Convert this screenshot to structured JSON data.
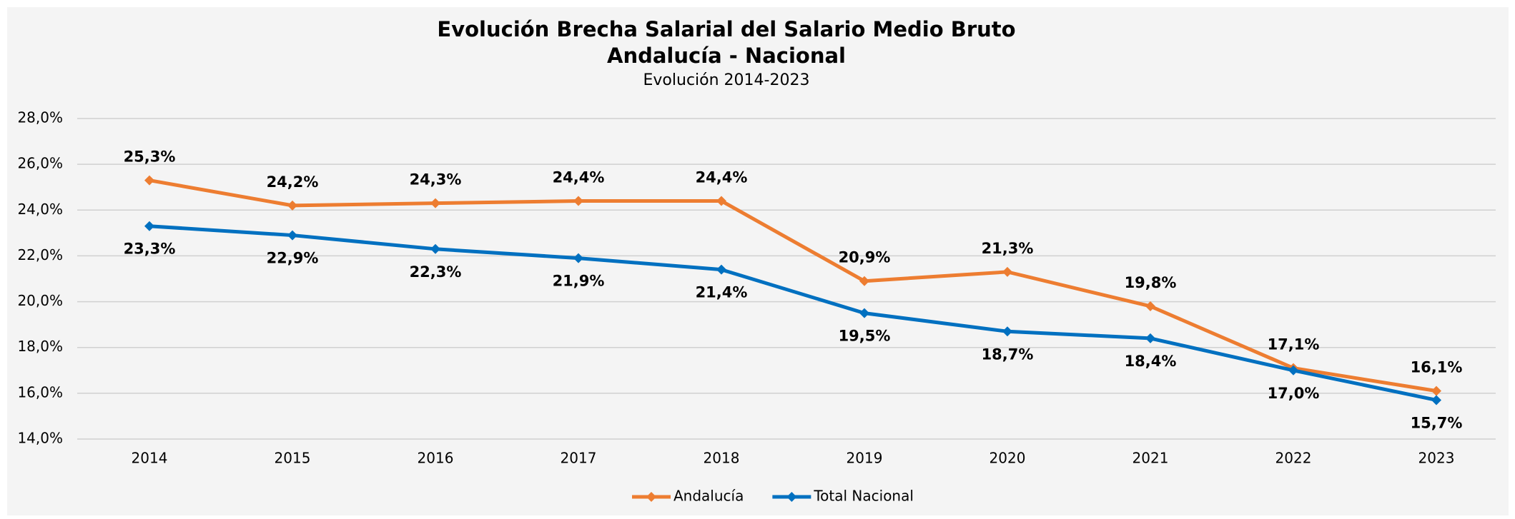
{
  "chart_data": {
    "type": "line",
    "title": "Evolución Brecha Salarial del Salario Medio Bruto",
    "title_line2": "Andalucía - Nacional",
    "subtitle": "Evolución 2014-2023",
    "categories": [
      "2014",
      "2015",
      "2016",
      "2017",
      "2018",
      "2019",
      "2020",
      "2021",
      "2022",
      "2023"
    ],
    "series": [
      {
        "name": "Andalucía",
        "color": "#ed7d31",
        "values": [
          25.3,
          24.2,
          24.3,
          24.4,
          24.4,
          20.9,
          21.3,
          19.8,
          17.1,
          16.1
        ],
        "value_labels": [
          "25,3%",
          "24,2%",
          "24,3%",
          "24,4%",
          "24,4%",
          "20,9%",
          "21,3%",
          "19,8%",
          "17,1%",
          "16,1%"
        ]
      },
      {
        "name": "Total Nacional",
        "color": "#0070c0",
        "values": [
          23.3,
          22.9,
          22.3,
          21.9,
          21.4,
          19.5,
          18.7,
          18.4,
          17.0,
          15.7
        ],
        "value_labels": [
          "23,3%",
          "22,9%",
          "22,3%",
          "21,9%",
          "21,4%",
          "19,5%",
          "18,7%",
          "18,4%",
          "17,0%",
          "15,7%"
        ]
      }
    ],
    "ylim": [
      14,
      28
    ],
    "yticks": [
      {
        "value": 14,
        "label": "14,0%"
      },
      {
        "value": 16,
        "label": "16,0%"
      },
      {
        "value": 18,
        "label": "18,0%"
      },
      {
        "value": 20,
        "label": "20,0%"
      },
      {
        "value": 22,
        "label": "22,0%"
      },
      {
        "value": 24,
        "label": "24,0%"
      },
      {
        "value": 26,
        "label": "26,0%"
      },
      {
        "value": 28,
        "label": "28,0%"
      }
    ],
    "grid": true,
    "legend": "bottom"
  }
}
